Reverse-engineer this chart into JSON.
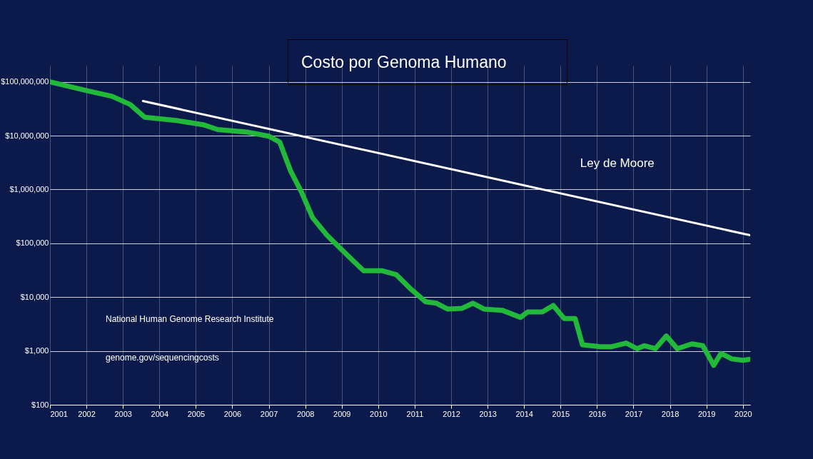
{
  "chart_data": {
    "type": "line",
    "title": "Costo por Genoma Humano",
    "x": [
      2001.0,
      2002.0,
      2002.7,
      2003.2,
      2003.6,
      2004.5,
      2005.2,
      2005.6,
      2006.4,
      2007.0,
      2007.3,
      2007.6,
      2007.9,
      2008.2,
      2008.6,
      2009.2,
      2009.6,
      2010.1,
      2010.5,
      2010.9,
      2011.3,
      2011.6,
      2011.9,
      2012.3,
      2012.6,
      2012.9,
      2013.4,
      2013.9,
      2014.1,
      2014.5,
      2014.8,
      2015.1,
      2015.4,
      2015.6,
      2016.1,
      2016.4,
      2016.8,
      2017.1,
      2017.3,
      2017.6,
      2017.9,
      2018.2,
      2018.6,
      2018.9,
      2019.2,
      2019.4,
      2019.7,
      2020.0,
      2020.2
    ],
    "series": [
      {
        "color": "#22b83a",
        "values": [
          100000000,
          69000000,
          54000000,
          38000000,
          22000000,
          19000000,
          16000000,
          13000000,
          11700000,
          9800000,
          7600000,
          2200000,
          890000,
          300000,
          140000,
          56000,
          31000,
          31000,
          26000,
          14000,
          8200,
          7700,
          6000,
          6200,
          7700,
          6000,
          5700,
          4200,
          5300,
          5300,
          7000,
          4000,
          4000,
          1300,
          1200,
          1200,
          1400,
          1100,
          1250,
          1100,
          1900,
          1100,
          1350,
          1250,
          540,
          900,
          710,
          670,
          700
        ]
      },
      {
        "name": "Ley de Moore",
        "color": "#ffffff",
        "x": [
          2003.55,
          2020.2
        ],
        "values": [
          44000000,
          141000
        ]
      }
    ],
    "xlim": [
      2001,
      2020.2
    ],
    "xticks": [
      2001,
      2002,
      2003,
      2004,
      2005,
      2006,
      2007,
      2008,
      2009,
      2010,
      2011,
      2012,
      2013,
      2014,
      2015,
      2016,
      2017,
      2018,
      2019,
      2020
    ],
    "ylim": [
      100,
      200000000
    ],
    "log": true,
    "yticks": [
      {
        "value": 100,
        "label": "$100"
      },
      {
        "value": 1000,
        "label": "$1,000"
      },
      {
        "value": 10000,
        "label": "$10,000"
      },
      {
        "value": 100000,
        "label": "$100,000"
      },
      {
        "value": 1000000,
        "label": "$1,000,000"
      },
      {
        "value": 10000000,
        "label": "$10,000,000"
      },
      {
        "value": 100000000,
        "label": "$100,000,000"
      }
    ],
    "grid": true,
    "annotations": [
      "National Human Genome Research Institute",
      "genome.gov/sequencingcosts"
    ]
  }
}
